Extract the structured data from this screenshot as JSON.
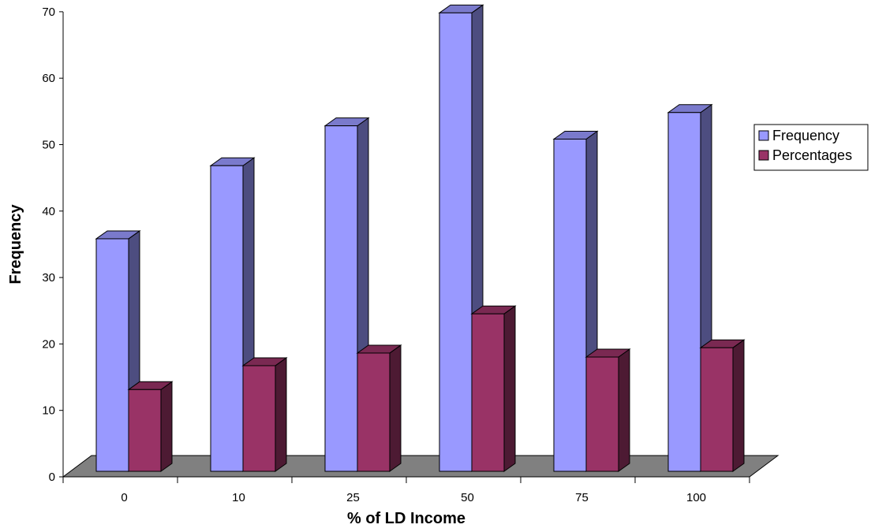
{
  "chart_data": {
    "type": "bar",
    "categories": [
      "0",
      "10",
      "25",
      "50",
      "75",
      "100"
    ],
    "series": [
      {
        "name": "Frequency",
        "values": [
          35,
          46,
          52,
          69,
          50,
          54
        ]
      },
      {
        "name": "Percentages",
        "values": [
          12.3,
          15.9,
          17.8,
          23.7,
          17.2,
          18.6
        ]
      }
    ],
    "xlabel": "% of LD Income",
    "ylabel": "Frequency",
    "ylim": [
      0,
      70
    ],
    "yticks": [
      "0",
      "10",
      "20",
      "30",
      "40",
      "50",
      "60",
      "70"
    ],
    "grid": false,
    "legend_position": "right",
    "colors": {
      "Frequency": {
        "front": "#9999ff",
        "side": "#4d4d80",
        "top": "#7a7acc"
      },
      "Percentages": {
        "front": "#993366",
        "side": "#4d1a33",
        "top": "#7a2952"
      },
      "floor": "#808080"
    }
  }
}
